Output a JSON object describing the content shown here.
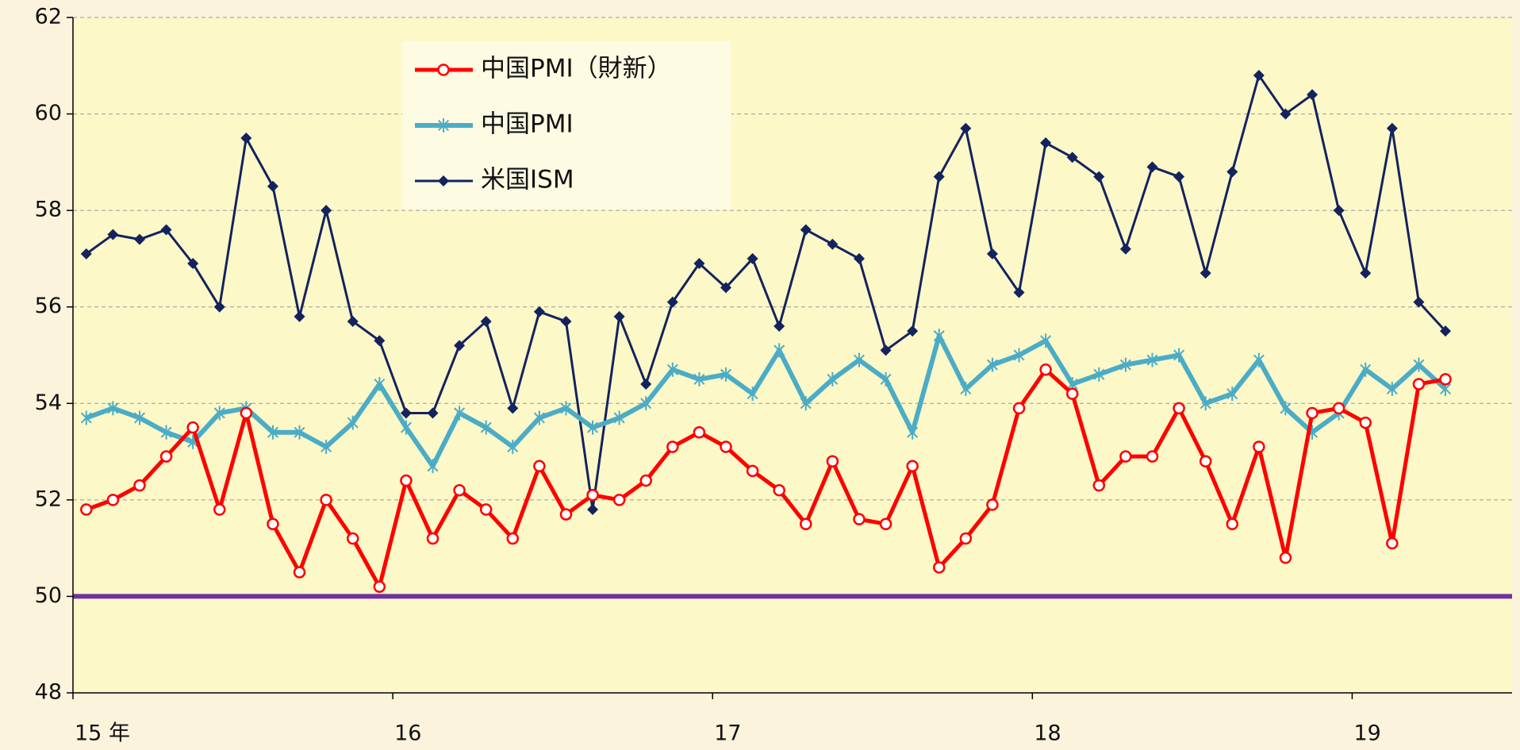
{
  "chart_data": {
    "type": "line",
    "categories": [
      "15 年",
      null,
      null,
      null,
      null,
      null,
      null,
      null,
      null,
      null,
      null,
      null,
      "16",
      null,
      null,
      null,
      null,
      null,
      null,
      null,
      null,
      null,
      null,
      null,
      "17",
      null,
      null,
      null,
      null,
      null,
      null,
      null,
      null,
      null,
      null,
      null,
      "18",
      null,
      null,
      null,
      null,
      null,
      null,
      null,
      null,
      null,
      null,
      null,
      "19",
      null,
      null,
      null,
      null,
      null
    ],
    "series": [
      {
        "name": "中国PMI（財新）",
        "color": "#ff0000",
        "marker": "circle",
        "values": [
          51.8,
          52.0,
          52.3,
          52.9,
          53.5,
          51.8,
          53.8,
          51.5,
          50.5,
          52.0,
          51.2,
          50.2,
          52.4,
          51.2,
          52.2,
          51.8,
          51.2,
          52.7,
          51.7,
          52.1,
          52.0,
          52.4,
          53.1,
          53.4,
          53.1,
          52.6,
          52.2,
          51.5,
          52.8,
          51.6,
          51.5,
          52.7,
          50.6,
          51.2,
          51.9,
          53.9,
          54.7,
          54.2,
          52.3,
          52.9,
          52.9,
          53.9,
          52.8,
          51.5,
          53.1,
          50.8,
          53.8,
          53.9,
          53.6,
          51.1,
          54.4,
          54.5,
          null,
          null
        ]
      },
      {
        "name": "中国PMI",
        "color": "#4bacc6",
        "marker": "asterisk",
        "values": [
          53.7,
          53.9,
          53.7,
          53.4,
          53.2,
          53.8,
          53.9,
          53.4,
          53.4,
          53.1,
          53.6,
          54.4,
          53.5,
          52.7,
          53.8,
          53.5,
          53.1,
          53.7,
          53.9,
          53.5,
          53.7,
          54.0,
          54.7,
          54.5,
          54.6,
          54.2,
          55.1,
          54.0,
          54.5,
          54.9,
          54.5,
          53.4,
          55.4,
          54.3,
          54.8,
          55.0,
          55.3,
          54.4,
          54.6,
          54.8,
          54.9,
          55.0,
          54.0,
          54.2,
          54.9,
          53.9,
          53.4,
          53.8,
          54.7,
          54.3,
          54.8,
          54.3,
          null,
          null
        ]
      },
      {
        "name": "米国ISM",
        "color": "#13235e",
        "marker": "diamond",
        "values": [
          57.1,
          57.5,
          57.4,
          57.6,
          56.9,
          56.0,
          59.5,
          58.5,
          55.8,
          58.0,
          55.7,
          55.3,
          53.8,
          53.8,
          55.2,
          55.7,
          53.9,
          55.9,
          55.7,
          51.8,
          55.8,
          54.4,
          56.1,
          56.9,
          56.4,
          57.0,
          55.6,
          57.6,
          57.3,
          57.0,
          55.1,
          55.5,
          58.7,
          59.7,
          57.1,
          56.3,
          59.4,
          59.1,
          58.7,
          57.2,
          58.9,
          58.7,
          56.7,
          58.8,
          60.8,
          60.0,
          60.4,
          58.0,
          56.7,
          59.7,
          56.1,
          55.5,
          null,
          null
        ]
      }
    ],
    "ylim": [
      48,
      62
    ],
    "yticks": [
      48,
      50,
      52,
      54,
      56,
      58,
      60,
      62
    ],
    "grid": true,
    "reference_line": {
      "value": 50,
      "color": "#7030a0"
    },
    "legend": "upper left",
    "background": "#fdf8c8"
  }
}
